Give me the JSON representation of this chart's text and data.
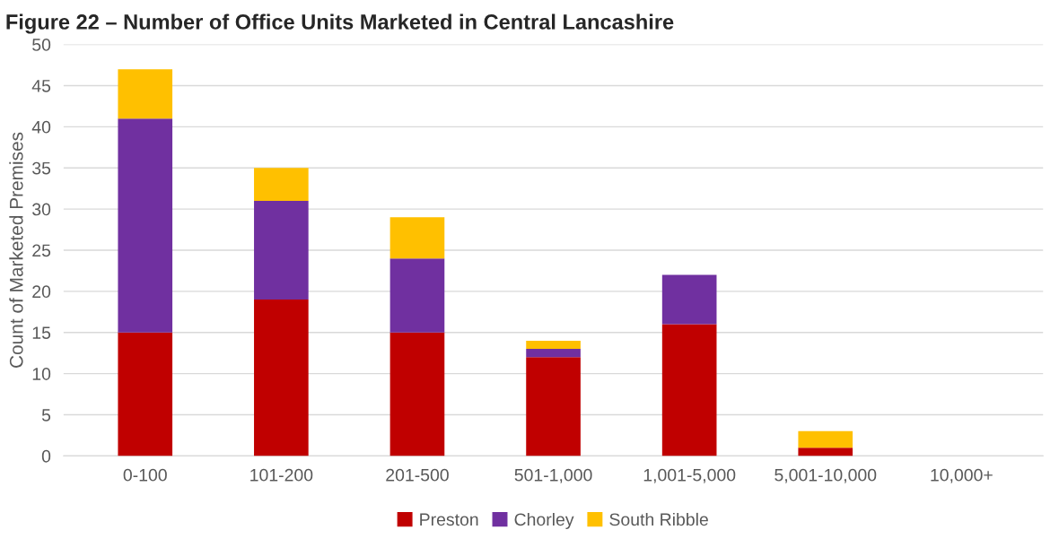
{
  "chart_data": {
    "type": "bar",
    "title": "Figure 22 – Number of Office Units Marketed in Central Lancashire",
    "ylabel": "Count of Marketed Premises",
    "categories": [
      "0-100",
      "101-200",
      "201-500",
      "501-1,000",
      "1,001-5,000",
      "5,001-10,000",
      "10,000+"
    ],
    "series": [
      {
        "name": "Preston",
        "color": "#c00000",
        "values": [
          15,
          19,
          15,
          12,
          16,
          1,
          0
        ]
      },
      {
        "name": "Chorley",
        "color": "#7030a0",
        "values": [
          26,
          12,
          9,
          1,
          6,
          0,
          0
        ]
      },
      {
        "name": "South Ribble",
        "color": "#ffc000",
        "values": [
          6,
          4,
          5,
          1,
          0,
          2,
          0
        ]
      }
    ],
    "stacked": true,
    "ylim": [
      0,
      50
    ],
    "yticks": [
      0,
      5,
      10,
      15,
      20,
      25,
      30,
      35,
      40,
      45,
      50
    ],
    "grid": "y",
    "legend": "bottom"
  }
}
